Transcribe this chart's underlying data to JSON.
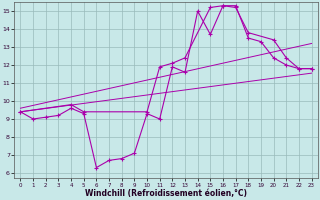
{
  "background_color": "#c8e8e8",
  "line_color": "#aa00aa",
  "grid_color": "#99bbbb",
  "xlabel": "Windchill (Refroidissement éolien,°C)",
  "xlim_min": -0.5,
  "xlim_max": 23.5,
  "ylim_min": 5.7,
  "ylim_max": 15.5,
  "yticks": [
    6,
    7,
    8,
    9,
    10,
    11,
    12,
    13,
    14,
    15
  ],
  "xticks": [
    0,
    1,
    2,
    3,
    4,
    5,
    6,
    7,
    8,
    9,
    10,
    11,
    12,
    13,
    14,
    15,
    16,
    17,
    18,
    19,
    20,
    21,
    22,
    23
  ],
  "line1_x": [
    0,
    1,
    2,
    3,
    4,
    5,
    6,
    7,
    8,
    9,
    10,
    11,
    12,
    13,
    14,
    15,
    16,
    17,
    18,
    19,
    20,
    21,
    22,
    23
  ],
  "line1_y": [
    9.4,
    9.0,
    9.1,
    9.2,
    9.6,
    9.3,
    6.3,
    6.7,
    6.8,
    7.1,
    9.3,
    9.0,
    11.9,
    11.6,
    15.0,
    13.7,
    15.3,
    15.3,
    13.5,
    13.3,
    12.4,
    12.0,
    11.8,
    11.8
  ],
  "line2_x": [
    0,
    4,
    5,
    10,
    11,
    12,
    13,
    15,
    16,
    17,
    18,
    20,
    21,
    22,
    23
  ],
  "line2_y": [
    9.4,
    9.8,
    9.4,
    9.4,
    11.9,
    12.1,
    12.4,
    15.2,
    15.3,
    15.2,
    13.8,
    13.4,
    12.4,
    11.8,
    11.8
  ],
  "trend1_x0": 0,
  "trend1_x1": 23,
  "trend1_y0": 9.4,
  "trend1_y1": 11.55,
  "trend2_x0": 0,
  "trend2_x1": 23,
  "trend2_y0": 9.6,
  "trend2_y1": 13.2
}
